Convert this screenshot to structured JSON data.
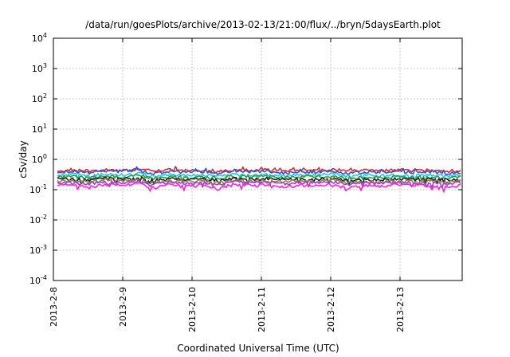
{
  "chart_data": {
    "type": "line",
    "title": "/data/run/goesPlots/archive/2013-02-13/21:00/flux/../bryn/5daysEarth.plot",
    "xlabel": "Coordinated Universal Time (UTC)",
    "ylabel": "cSv/day",
    "yscale": "log",
    "ylim": [
      0.0001,
      10000
    ],
    "y_ticks": [
      {
        "base": "10",
        "exp": "-4",
        "value": 0.0001
      },
      {
        "base": "10",
        "exp": "-3",
        "value": 0.001
      },
      {
        "base": "10",
        "exp": "-2",
        "value": 0.01
      },
      {
        "base": "10",
        "exp": "-1",
        "value": 0.1
      },
      {
        "base": "10",
        "exp": "0",
        "value": 1
      },
      {
        "base": "10",
        "exp": "1",
        "value": 10
      },
      {
        "base": "10",
        "exp": "2",
        "value": 100
      },
      {
        "base": "10",
        "exp": "3",
        "value": 1000
      },
      {
        "base": "10",
        "exp": "4",
        "value": 10000
      }
    ],
    "x_ticks": [
      "2013-2-8",
      "2013-2-9",
      "2013-2-10",
      "2013-2-11",
      "2013-2-12",
      "2013-2-13"
    ],
    "xlim": [
      "2013-02-08T00:00",
      "2013-02-13T21:00"
    ],
    "grid": true,
    "series": [
      {
        "color": "#e8262e",
        "values": [
          0.42,
          0.44,
          0.41,
          0.45,
          0.43,
          0.48,
          0.4,
          0.46,
          0.42,
          0.44,
          0.39,
          0.47,
          0.43,
          0.45,
          0.41,
          0.44,
          0.42,
          0.46,
          0.4,
          0.43,
          0.41,
          0.45,
          0.42,
          0.44,
          0.4,
          0.43
        ]
      },
      {
        "color": "#2b58d8",
        "values": [
          0.38,
          0.4,
          0.36,
          0.42,
          0.39,
          0.44,
          0.34,
          0.41,
          0.37,
          0.4,
          0.33,
          0.43,
          0.38,
          0.41,
          0.35,
          0.4,
          0.37,
          0.42,
          0.34,
          0.39,
          0.36,
          0.41,
          0.37,
          0.4,
          0.35,
          0.38
        ]
      },
      {
        "color": "#28c8d8",
        "values": [
          0.3,
          0.32,
          0.29,
          0.33,
          0.31,
          0.35,
          0.28,
          0.32,
          0.3,
          0.31,
          0.27,
          0.33,
          0.3,
          0.32,
          0.29,
          0.31,
          0.3,
          0.33,
          0.28,
          0.31,
          0.29,
          0.32,
          0.3,
          0.31,
          0.28,
          0.3
        ]
      },
      {
        "color": "#2e9e3a",
        "values": [
          0.26,
          0.27,
          0.25,
          0.28,
          0.26,
          0.29,
          0.24,
          0.27,
          0.25,
          0.27,
          0.24,
          0.28,
          0.26,
          0.27,
          0.25,
          0.27,
          0.26,
          0.28,
          0.24,
          0.26,
          0.25,
          0.27,
          0.26,
          0.27,
          0.24,
          0.26
        ]
      },
      {
        "color": "#202020",
        "values": [
          0.22,
          0.23,
          0.21,
          0.24,
          0.22,
          0.25,
          0.2,
          0.23,
          0.21,
          0.23,
          0.2,
          0.24,
          0.22,
          0.23,
          0.21,
          0.23,
          0.22,
          0.24,
          0.2,
          0.22,
          0.21,
          0.23,
          0.22,
          0.23,
          0.21,
          0.22
        ]
      },
      {
        "color": "#9a7a5a",
        "values": [
          0.19,
          0.2,
          0.18,
          0.21,
          0.19,
          0.21,
          0.17,
          0.2,
          0.18,
          0.2,
          0.17,
          0.21,
          0.19,
          0.2,
          0.18,
          0.2,
          0.19,
          0.21,
          0.17,
          0.19,
          0.18,
          0.2,
          0.19,
          0.2,
          0.18,
          0.19
        ]
      },
      {
        "color": "#a040d0",
        "values": [
          0.17,
          0.18,
          0.16,
          0.18,
          0.17,
          0.19,
          0.15,
          0.18,
          0.16,
          0.17,
          0.15,
          0.18,
          0.17,
          0.18,
          0.16,
          0.17,
          0.17,
          0.18,
          0.15,
          0.17,
          0.16,
          0.18,
          0.17,
          0.17,
          0.16,
          0.17
        ]
      },
      {
        "color": "#ff20e0",
        "values": [
          0.14,
          0.15,
          0.12,
          0.15,
          0.14,
          0.16,
          0.11,
          0.15,
          0.13,
          0.14,
          0.11,
          0.15,
          0.14,
          0.15,
          0.12,
          0.14,
          0.14,
          0.15,
          0.11,
          0.14,
          0.13,
          0.15,
          0.14,
          0.14,
          0.12,
          0.14
        ]
      }
    ]
  }
}
